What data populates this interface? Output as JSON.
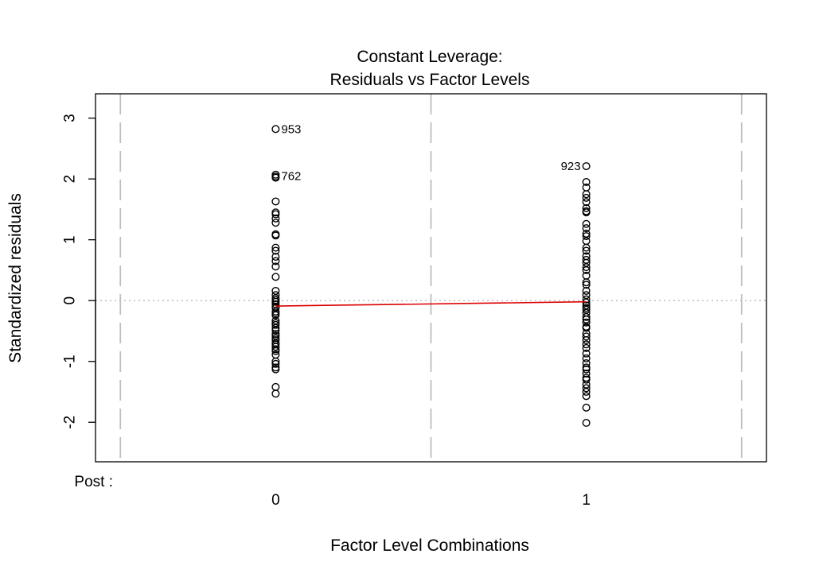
{
  "chart_data": {
    "type": "scatter",
    "title": "Constant Leverage:",
    "subtitle": "Residuals vs Factor Levels",
    "xlabel": "Factor Level Combinations",
    "ylabel": "Standardized residuals",
    "factor_name": "Post :",
    "categories": [
      "0",
      "1"
    ],
    "x_range": [
      -0.58,
      1.58
    ],
    "ylim": [
      -2.65,
      3.4
    ],
    "yticks": [
      -2,
      -1,
      0,
      1,
      2,
      3
    ],
    "ytick_labels": [
      "-2",
      "-1",
      "0",
      "1",
      "2",
      "3"
    ],
    "vertical_guides": [
      -0.5,
      0.5,
      1.5
    ],
    "zero_line": true,
    "colors": {
      "points": "#000000",
      "smooth": "#dd0000",
      "guides": "#bebebe",
      "zero_line": "#bebebe"
    },
    "series": [
      {
        "category": "0",
        "values": [
          2.82,
          2.07,
          2.04,
          2.02,
          1.63,
          1.45,
          1.42,
          1.35,
          1.28,
          1.09,
          1.07,
          0.87,
          0.82,
          0.72,
          0.65,
          0.56,
          0.39,
          0.16,
          0.09,
          0.04,
          0.01,
          -0.02,
          -0.06,
          -0.1,
          -0.12,
          -0.18,
          -0.21,
          -0.24,
          -0.33,
          -0.37,
          -0.4,
          -0.45,
          -0.49,
          -0.55,
          -0.58,
          -0.62,
          -0.65,
          -0.7,
          -0.72,
          -0.76,
          -0.8,
          -0.83,
          -0.89,
          -1.0,
          -1.04,
          -1.1,
          -1.13,
          -1.42,
          -1.53
        ]
      },
      {
        "category": "1",
        "values": [
          2.21,
          1.95,
          1.86,
          1.75,
          1.69,
          1.62,
          1.52,
          1.47,
          1.45,
          1.26,
          1.19,
          1.1,
          1.06,
          0.98,
          0.87,
          0.82,
          0.73,
          0.67,
          0.62,
          0.55,
          0.5,
          0.41,
          0.3,
          0.26,
          0.16,
          0.09,
          0.02,
          -0.03,
          -0.08,
          -0.12,
          -0.15,
          -0.2,
          -0.27,
          -0.31,
          -0.36,
          -0.43,
          -0.45,
          -0.54,
          -0.59,
          -0.65,
          -0.72,
          -0.78,
          -0.87,
          -0.95,
          -1.03,
          -1.1,
          -1.13,
          -1.2,
          -1.27,
          -1.3,
          -1.38,
          -1.44,
          -1.5,
          -1.57,
          -1.76,
          -2.01
        ]
      }
    ],
    "smooth_line": [
      {
        "x": 0,
        "y": -0.09
      },
      {
        "x": 1,
        "y": -0.02
      }
    ],
    "annotations": [
      {
        "label": "953",
        "x": 0,
        "y": 2.82,
        "side": "right"
      },
      {
        "label": "762",
        "x": 0,
        "y": 2.05,
        "side": "right"
      },
      {
        "label": "923",
        "x": 1,
        "y": 2.21,
        "side": "left"
      }
    ]
  }
}
